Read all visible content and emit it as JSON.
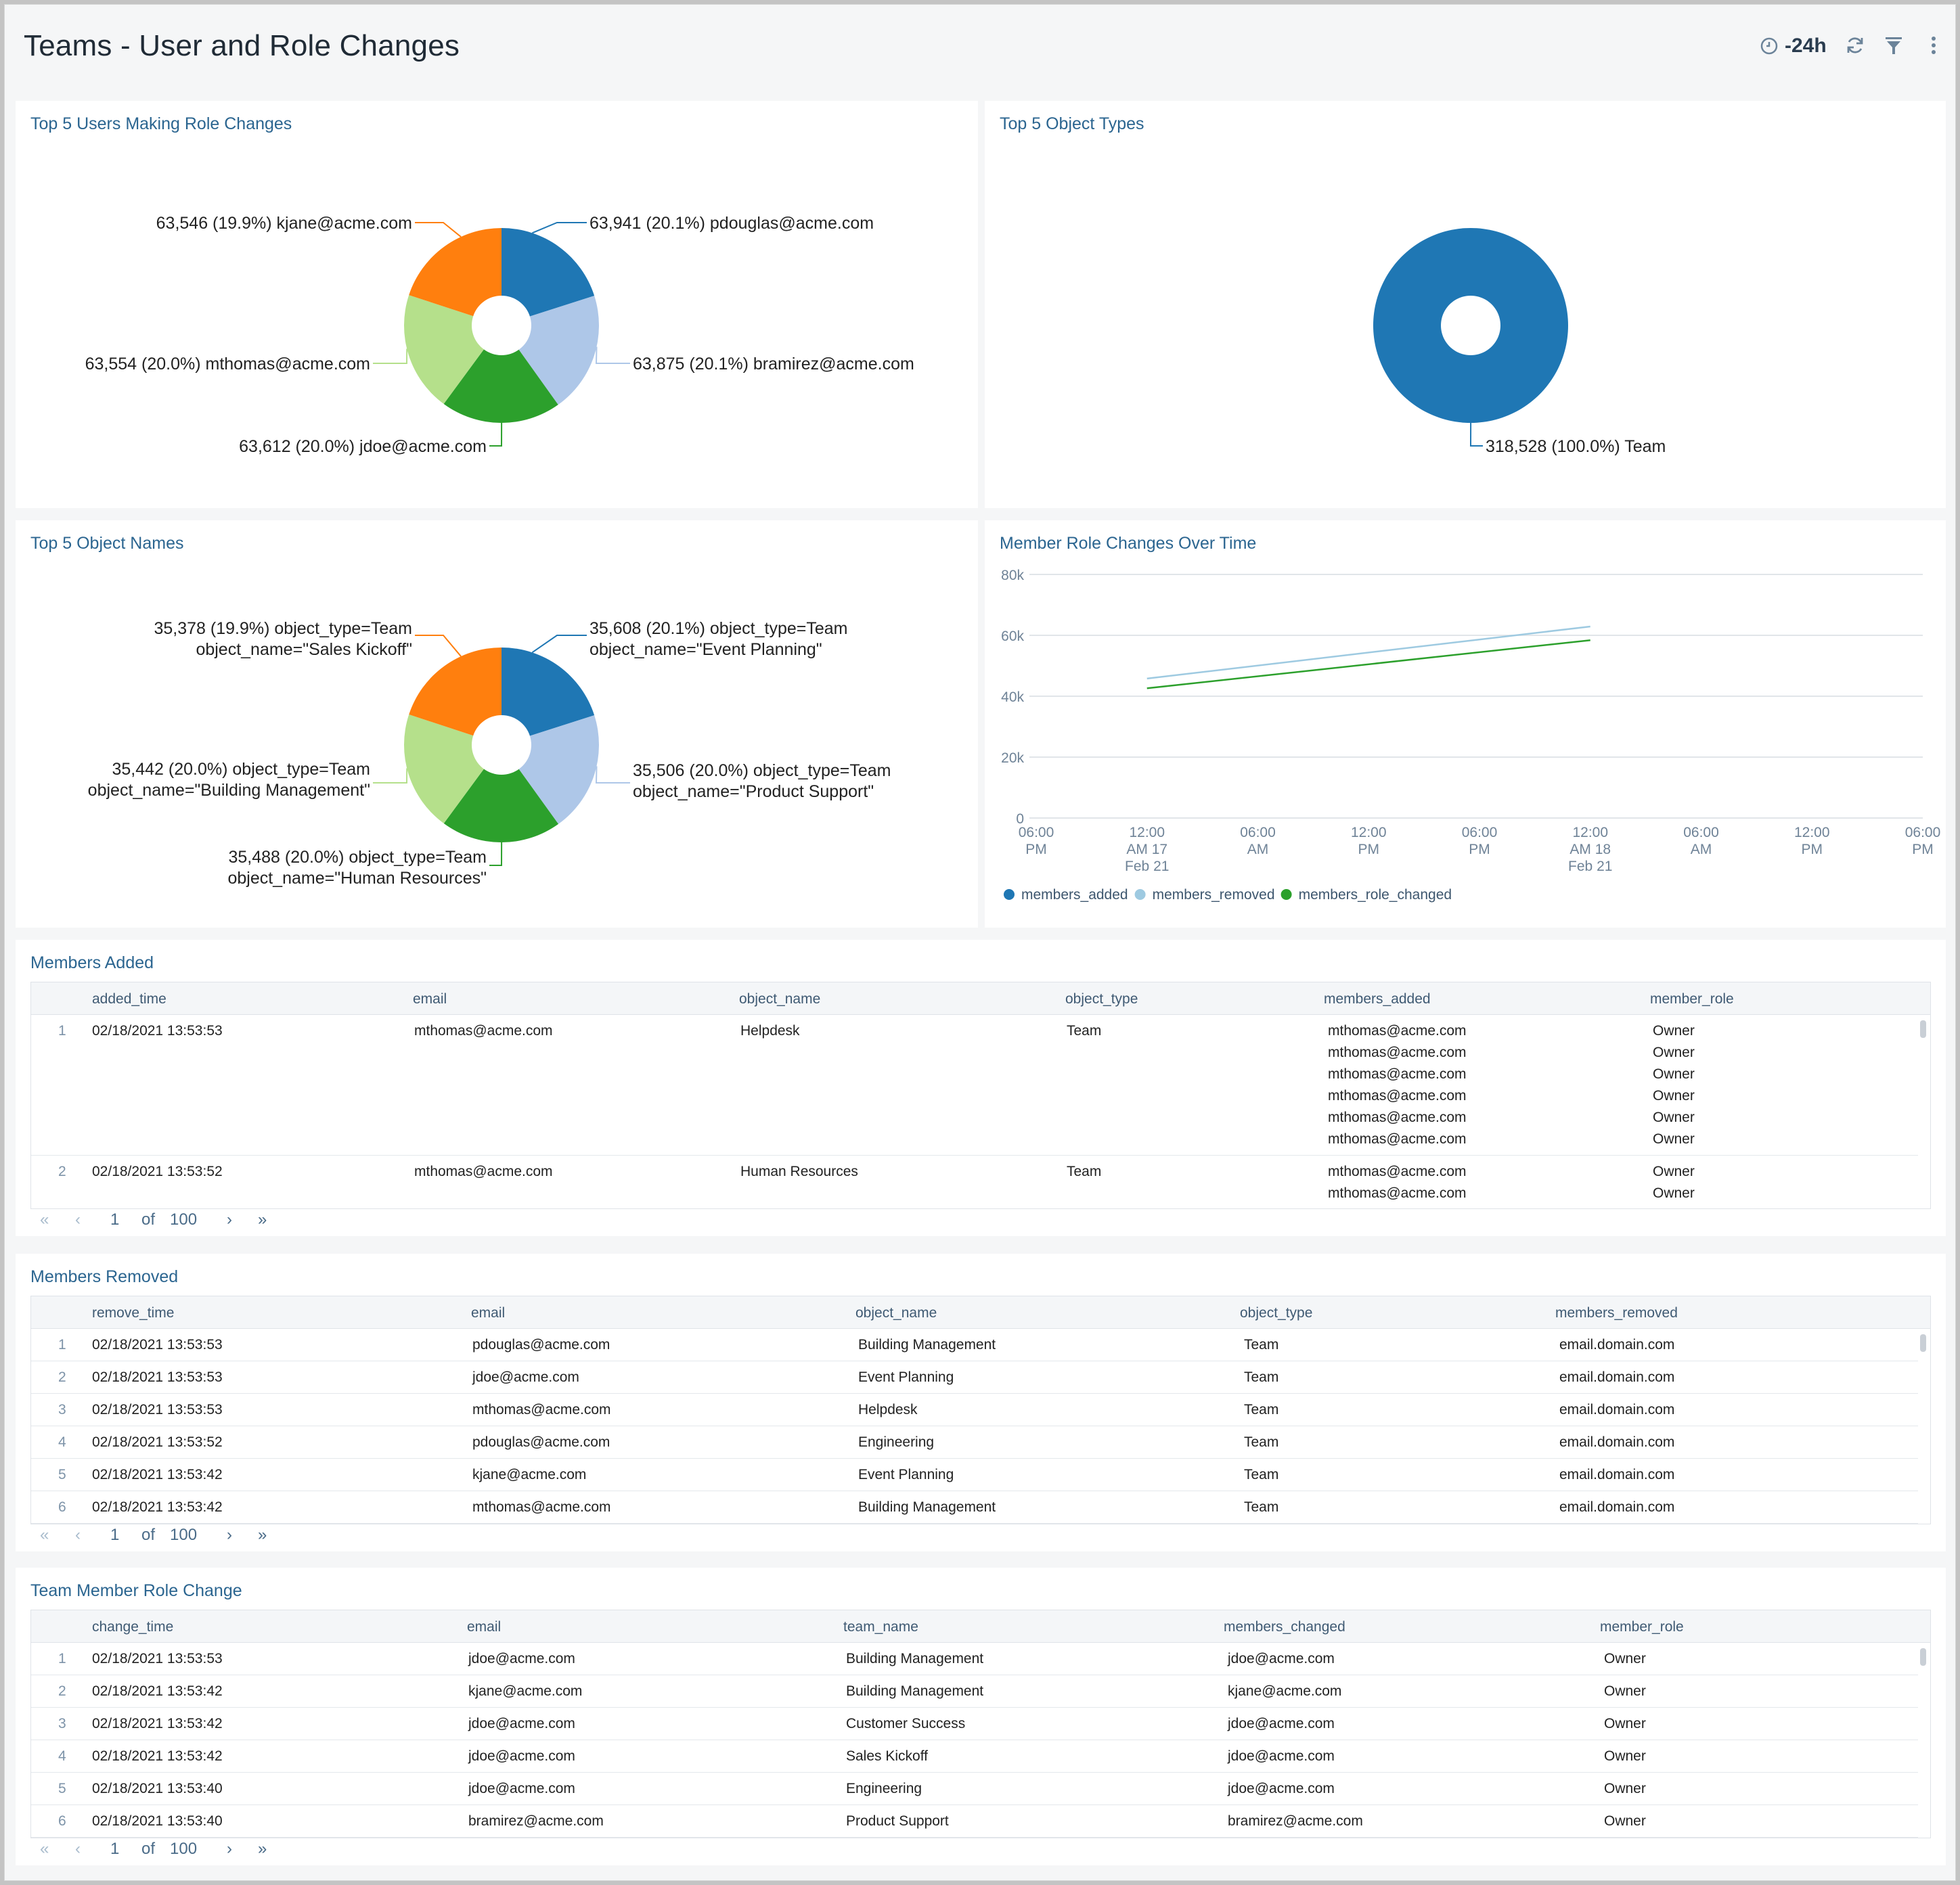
{
  "dashboard": {
    "title": "Teams - User and Role Changes",
    "time_range": "-24h",
    "icons": [
      "clock-icon",
      "refresh-icon",
      "filter-icon",
      "more-vertical-icon"
    ]
  },
  "panels": {
    "users": {
      "title": "Top 5 Users Making Role Changes"
    },
    "object_types": {
      "title": "Top 5 Object Types"
    },
    "object_names": {
      "title": "Top 5 Object Names"
    },
    "over_time": {
      "title": "Member Role Changes Over Time"
    },
    "members_added": {
      "title": "Members Added"
    },
    "members_removed": {
      "title": "Members Removed"
    },
    "role_change": {
      "title": "Team Member Role Change"
    }
  },
  "chart_data": [
    {
      "type": "pie",
      "title": "Top 5 Users Making Role Changes",
      "slices": [
        {
          "label": "pdouglas@acme.com",
          "value": 63941,
          "display": "63,941 (20.1%) pdouglas@acme.com",
          "color": "#1f77b4"
        },
        {
          "label": "bramirez@acme.com",
          "value": 63875,
          "display": "63,875 (20.1%) bramirez@acme.com",
          "color": "#aec7e8"
        },
        {
          "label": "jdoe@acme.com",
          "value": 63612,
          "display": "63,612 (20.0%) jdoe@acme.com",
          "color": "#2ca02c"
        },
        {
          "label": "mthomas@acme.com",
          "value": 63554,
          "display": "63,554 (20.0%) mthomas@acme.com",
          "color": "#b5e08b"
        },
        {
          "label": "kjane@acme.com",
          "value": 63546,
          "display": "63,546 (19.9%) kjane@acme.com",
          "color": "#ff7f0e"
        }
      ]
    },
    {
      "type": "pie",
      "title": "Top 5 Object Types",
      "slices": [
        {
          "label": "Team",
          "value": 318528,
          "display": "318,528 (100.0%) Team",
          "color": "#1f77b4"
        }
      ]
    },
    {
      "type": "pie",
      "title": "Top 5 Object Names",
      "slices": [
        {
          "label": "Event Planning",
          "value": 35608,
          "display_lines": [
            "35,608 (20.1%) object_type=Team",
            "object_name=\"Event Planning\""
          ],
          "color": "#1f77b4"
        },
        {
          "label": "Product Support",
          "value": 35506,
          "display_lines": [
            "35,506 (20.0%) object_type=Team",
            "object_name=\"Product Support\""
          ],
          "color": "#aec7e8"
        },
        {
          "label": "Human Resources",
          "value": 35488,
          "display_lines": [
            "35,488 (20.0%) object_type=Team",
            "object_name=\"Human Resources\""
          ],
          "color": "#2ca02c"
        },
        {
          "label": "Building Management",
          "value": 35442,
          "display_lines": [
            "35,442 (20.0%) object_type=Team",
            "object_name=\"Building Management\""
          ],
          "color": "#b5e08b"
        },
        {
          "label": "Sales Kickoff",
          "value": 35378,
          "display_lines": [
            "35,378 (19.9%) object_type=Team",
            "object_name=\"Sales Kickoff\""
          ],
          "color": "#ff7f0e"
        }
      ]
    },
    {
      "type": "line",
      "title": "Member Role Changes Over Time",
      "x_ticks": [
        [
          "06:00",
          "PM"
        ],
        [
          "12:00",
          "AM 17",
          "Feb 21"
        ],
        [
          "06:00",
          "AM"
        ],
        [
          "12:00",
          "PM"
        ],
        [
          "06:00",
          "PM"
        ],
        [
          "12:00",
          "AM 18",
          "Feb 21"
        ],
        [
          "06:00",
          "AM"
        ],
        [
          "12:00",
          "PM"
        ],
        [
          "06:00",
          "PM"
        ]
      ],
      "y_ticks": [
        "80k",
        "60k",
        "40k",
        "20k",
        "0"
      ],
      "ylim": [
        0,
        80000
      ],
      "x_range": [
        0,
        8
      ],
      "legend_position": "bottom-left",
      "series": [
        {
          "name": "members_added",
          "color": "#1f77b4",
          "points": []
        },
        {
          "name": "members_removed",
          "color": "#9ecae1",
          "points": [
            [
              1,
              45800
            ],
            [
              5,
              62900
            ]
          ]
        },
        {
          "name": "members_role_changed",
          "color": "#2ca02c",
          "points": [
            [
              1,
              42600
            ],
            [
              5,
              58400
            ]
          ]
        }
      ]
    }
  ],
  "tables": {
    "added": {
      "columns": [
        "added_time",
        "email",
        "object_name",
        "object_type",
        "members_added",
        "member_role"
      ],
      "rows": [
        {
          "idx": "1",
          "time": "02/18/2021 13:53:53",
          "email": "mthomas@acme.com",
          "object_name": "Helpdesk",
          "object_type": "Team",
          "members": [
            "mthomas@acme.com",
            "mthomas@acme.com",
            "mthomas@acme.com",
            "mthomas@acme.com",
            "mthomas@acme.com",
            "mthomas@acme.com"
          ],
          "roles": [
            "Owner",
            "Owner",
            "Owner",
            "Owner",
            "Owner",
            "Owner"
          ]
        },
        {
          "idx": "2",
          "time": "02/18/2021 13:53:52",
          "email": "mthomas@acme.com",
          "object_name": "Human Resources",
          "object_type": "Team",
          "members": [
            "mthomas@acme.com",
            "mthomas@acme.com"
          ],
          "roles": [
            "Owner",
            "Owner"
          ]
        }
      ],
      "pager": {
        "page": "1",
        "of": "of",
        "total": "100"
      }
    },
    "removed": {
      "columns": [
        "remove_time",
        "email",
        "object_name",
        "object_type",
        "members_removed"
      ],
      "rows": [
        [
          "1",
          "02/18/2021 13:53:53",
          "pdouglas@acme.com",
          "Building Management",
          "Team",
          "email.domain.com"
        ],
        [
          "2",
          "02/18/2021 13:53:53",
          "jdoe@acme.com",
          "Event Planning",
          "Team",
          "email.domain.com"
        ],
        [
          "3",
          "02/18/2021 13:53:53",
          "mthomas@acme.com",
          "Helpdesk",
          "Team",
          "email.domain.com"
        ],
        [
          "4",
          "02/18/2021 13:53:52",
          "pdouglas@acme.com",
          "Engineering",
          "Team",
          "email.domain.com"
        ],
        [
          "5",
          "02/18/2021 13:53:42",
          "kjane@acme.com",
          "Event Planning",
          "Team",
          "email.domain.com"
        ],
        [
          "6",
          "02/18/2021 13:53:42",
          "mthomas@acme.com",
          "Building Management",
          "Team",
          "email.domain.com"
        ]
      ],
      "pager": {
        "page": "1",
        "of": "of",
        "total": "100"
      }
    },
    "role_change": {
      "columns": [
        "change_time",
        "email",
        "team_name",
        "members_changed",
        "member_role"
      ],
      "rows": [
        [
          "1",
          "02/18/2021 13:53:53",
          "jdoe@acme.com",
          "Building Management",
          "jdoe@acme.com",
          "Owner"
        ],
        [
          "2",
          "02/18/2021 13:53:42",
          "kjane@acme.com",
          "Building Management",
          "kjane@acme.com",
          "Owner"
        ],
        [
          "3",
          "02/18/2021 13:53:42",
          "jdoe@acme.com",
          "Customer Success",
          "jdoe@acme.com",
          "Owner"
        ],
        [
          "4",
          "02/18/2021 13:53:42",
          "jdoe@acme.com",
          "Sales Kickoff",
          "jdoe@acme.com",
          "Owner"
        ],
        [
          "5",
          "02/18/2021 13:53:40",
          "jdoe@acme.com",
          "Engineering",
          "jdoe@acme.com",
          "Owner"
        ],
        [
          "6",
          "02/18/2021 13:53:40",
          "bramirez@acme.com",
          "Product Support",
          "bramirez@acme.com",
          "Owner"
        ]
      ],
      "pager": {
        "page": "1",
        "of": "of",
        "total": "100"
      }
    }
  }
}
